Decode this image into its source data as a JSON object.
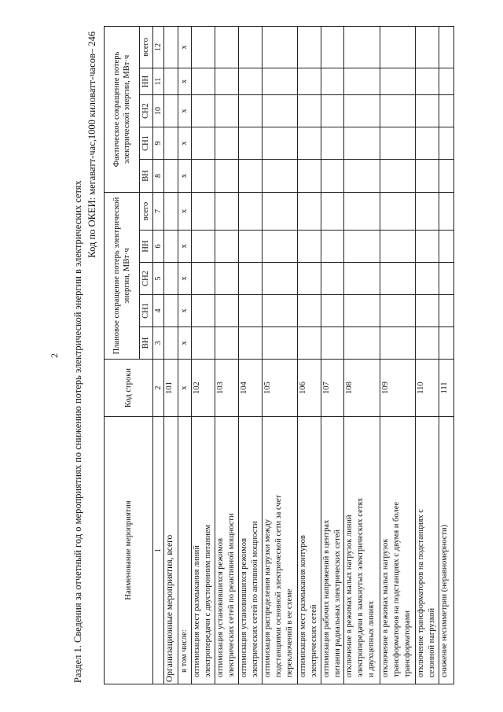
{
  "page_number": "2",
  "heading": "Раздел 1. Сведения за отчетный год о мероприятиях по снижению потерь электрической энергии в электрических сетях",
  "units": "Код по ОКЕИ: мегаватт-час,1000 киловатт-часов– 246",
  "table": {
    "col_name": "Наименование мероприятия",
    "col_code": "Код строки",
    "group_plan": "Плановое сокращение потерь электрической энергии, МВт·ч",
    "group_fact": "Фактическое сокращение потерь электрической энергии, МВт·ч",
    "sub": [
      "ВН",
      "СН1",
      "СН2",
      "НН",
      "всего",
      "ВН",
      "СН1",
      "СН2",
      "НН",
      "всего"
    ],
    "col_numbers": [
      "1",
      "2",
      "3",
      "4",
      "5",
      "6",
      "7",
      "8",
      "9",
      "10",
      "11",
      "12"
    ],
    "rows": [
      {
        "name": "Организационные мероприятия, всего",
        "code": "101",
        "values": [
          "",
          "",
          "",
          "",
          "",
          "",
          "",
          "",
          "",
          ""
        ]
      },
      {
        "name": "в том числе:",
        "code": "x",
        "values": [
          "x",
          "x",
          "x",
          "x",
          "x",
          "x",
          "x",
          "x",
          "x",
          "x"
        ]
      },
      {
        "name": "оптимизация мест размыкания линий\nэлектропередачи с двусторонним питанием",
        "code": "102",
        "values": [
          "",
          "",
          "",
          "",
          "",
          "",
          "",
          "",
          "",
          ""
        ]
      },
      {
        "name": "оптимизация установившихся режимов\nэлектрических сетей по реактивной мощности",
        "code": "103",
        "values": [
          "",
          "",
          "",
          "",
          "",
          "",
          "",
          "",
          "",
          ""
        ]
      },
      {
        "name": "оптимизация установившихся режимов\nэлектрических сетей по активной мощности",
        "code": "104",
        "values": [
          "",
          "",
          "",
          "",
          "",
          "",
          "",
          "",
          "",
          ""
        ]
      },
      {
        "name": "оптимизация распределения нагрузки между\nподстанциями основной электрической сети за счет\nпереключений в ее схеме",
        "code": "105",
        "values": [
          "",
          "",
          "",
          "",
          "",
          "",
          "",
          "",
          "",
          ""
        ]
      },
      {
        "name": "оптимизация мест размыкания контуров\nэлектрических сетей",
        "code": "106",
        "values": [
          "",
          "",
          "",
          "",
          "",
          "",
          "",
          "",
          "",
          ""
        ]
      },
      {
        "name": "оптимизация рабочих напряжений в центрах\nпитания радиальных электрических сетей",
        "code": "107",
        "values": [
          "",
          "",
          "",
          "",
          "",
          "",
          "",
          "",
          "",
          ""
        ]
      },
      {
        "name": "отключение в режимах малых нагрузок линий\nэлектропередачи в замкнутых электрических сетях\nи двухцепных линиях",
        "code": "108",
        "values": [
          "",
          "",
          "",
          "",
          "",
          "",
          "",
          "",
          "",
          ""
        ]
      },
      {
        "name": "отключение в режимах малых нагрузок\nтрансформаторов на подстанциях с двумя и более\nтрансформаторами",
        "code": "109",
        "values": [
          "",
          "",
          "",
          "",
          "",
          "",
          "",
          "",
          "",
          ""
        ]
      },
      {
        "name": "отключение трансформаторов на подстанциях с\nсезонной нагрузкой",
        "code": "110",
        "values": [
          "",
          "",
          "",
          "",
          "",
          "",
          "",
          "",
          "",
          ""
        ]
      },
      {
        "name": "снижение несимметрии (неравномерности)",
        "code": "111",
        "values": [
          "",
          "",
          "",
          "",
          "",
          "",
          "",
          "",
          "",
          ""
        ]
      }
    ]
  }
}
